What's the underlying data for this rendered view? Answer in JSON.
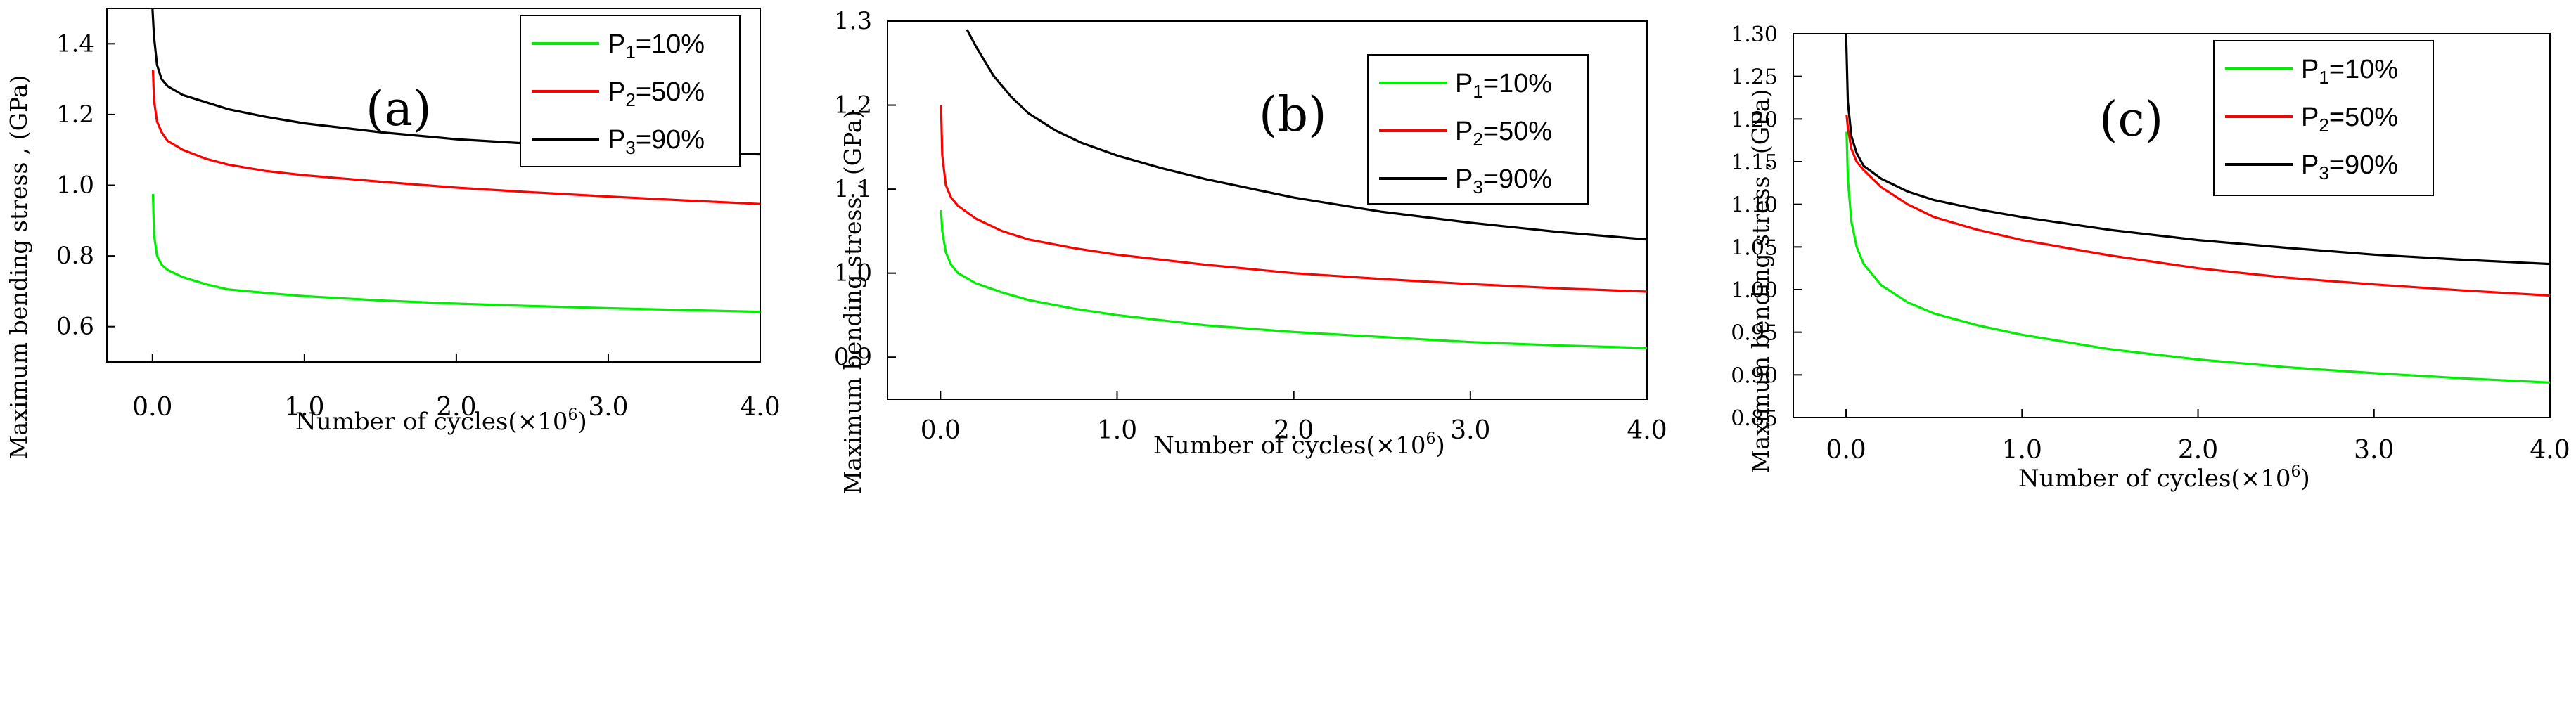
{
  "figure": {
    "xlabel": "Number of cycles(×10",
    "xlabel_sup": "6",
    "xlabel_tail": ")",
    "ylabel": "Maximum bending stress , (GPa)"
  },
  "colors": {
    "p1": "#00ee00",
    "p2": "#ff0000",
    "p3": "#000000",
    "axis": "#000000"
  },
  "chart_data": [
    {
      "type": "line",
      "panel_label": "(a)",
      "xlabel": "Number of cycles(×10⁶)",
      "ylabel": "Maximum bending stress , (GPa)",
      "xlim": [
        -0.3,
        4.0
      ],
      "ylim": [
        0.5,
        1.5
      ],
      "xticks": [
        0.0,
        1.0,
        2.0,
        3.0,
        4.0
      ],
      "xtick_labels": [
        "0.0",
        "1.0",
        "2.0",
        "3.0",
        "4.0"
      ],
      "yticks": [
        0.6,
        0.8,
        1.0,
        1.2,
        1.4
      ],
      "ytick_labels": [
        "0.6",
        "0.8",
        "1.0",
        "1.2",
        "1.4"
      ],
      "legend": {
        "position": "top-right",
        "entries": [
          {
            "prefix": "P",
            "sub": "1",
            "suffix": "=10%"
          },
          {
            "prefix": "P",
            "sub": "2",
            "suffix": "=50%"
          },
          {
            "prefix": "P",
            "sub": "3",
            "suffix": "=90%"
          }
        ]
      },
      "series": [
        {
          "name": "P1=10%",
          "color": "#00ee00",
          "x": [
            0.003,
            0.01,
            0.03,
            0.06,
            0.1,
            0.2,
            0.35,
            0.5,
            0.75,
            1.0,
            1.5,
            2.0,
            2.5,
            3.0,
            3.5,
            4.0
          ],
          "y": [
            0.975,
            0.86,
            0.8,
            0.775,
            0.76,
            0.74,
            0.72,
            0.705,
            0.695,
            0.686,
            0.674,
            0.665,
            0.658,
            0.652,
            0.647,
            0.642
          ]
        },
        {
          "name": "P2=50%",
          "color": "#ff0000",
          "x": [
            0.003,
            0.01,
            0.03,
            0.06,
            0.1,
            0.2,
            0.35,
            0.5,
            0.75,
            1.0,
            1.5,
            2.0,
            2.5,
            3.0,
            3.5,
            4.0
          ],
          "y": [
            1.325,
            1.24,
            1.18,
            1.15,
            1.125,
            1.1,
            1.075,
            1.058,
            1.04,
            1.028,
            1.01,
            0.993,
            0.98,
            0.968,
            0.957,
            0.947
          ]
        },
        {
          "name": "P3=90%",
          "color": "#000000",
          "x": [
            0.0,
            0.01,
            0.03,
            0.06,
            0.1,
            0.2,
            0.35,
            0.5,
            0.75,
            1.0,
            1.5,
            2.0,
            2.5,
            3.0,
            3.5,
            4.0
          ],
          "y": [
            1.5,
            1.42,
            1.34,
            1.3,
            1.28,
            1.255,
            1.235,
            1.215,
            1.193,
            1.175,
            1.15,
            1.13,
            1.117,
            1.105,
            1.095,
            1.087
          ]
        }
      ]
    },
    {
      "type": "line",
      "panel_label": "(b)",
      "xlabel": "Number of cycles(×10⁶)",
      "ylabel": "Maximum bending stress , (GPa)",
      "xlim": [
        -0.3,
        4.0
      ],
      "ylim": [
        0.85,
        1.3
      ],
      "xticks": [
        0.0,
        1.0,
        2.0,
        3.0,
        4.0
      ],
      "xtick_labels": [
        "0.0",
        "1.0",
        "2.0",
        "3.0",
        "4.0"
      ],
      "yticks": [
        0.9,
        1.0,
        1.1,
        1.2,
        1.3
      ],
      "ytick_labels": [
        "0.9",
        "1.0",
        "1.1",
        "1.2",
        "1.3"
      ],
      "legend": {
        "position": "top-right",
        "entries": [
          {
            "prefix": "P",
            "sub": "1",
            "suffix": "=10%"
          },
          {
            "prefix": "P",
            "sub": "2",
            "suffix": "=50%"
          },
          {
            "prefix": "P",
            "sub": "3",
            "suffix": "=90%"
          }
        ]
      },
      "series": [
        {
          "name": "P1=10%",
          "color": "#00ee00",
          "x": [
            0.003,
            0.01,
            0.03,
            0.06,
            0.1,
            0.2,
            0.35,
            0.5,
            0.75,
            1.0,
            1.5,
            2.0,
            2.5,
            3.0,
            3.5,
            4.0
          ],
          "y": [
            1.075,
            1.05,
            1.025,
            1.01,
            1.0,
            0.988,
            0.977,
            0.968,
            0.958,
            0.95,
            0.938,
            0.93,
            0.924,
            0.918,
            0.914,
            0.911
          ]
        },
        {
          "name": "P2=50%",
          "color": "#ff0000",
          "x": [
            0.003,
            0.01,
            0.03,
            0.06,
            0.1,
            0.2,
            0.35,
            0.5,
            0.75,
            1.0,
            1.5,
            2.0,
            2.5,
            3.0,
            3.5,
            4.0
          ],
          "y": [
            1.2,
            1.14,
            1.105,
            1.09,
            1.08,
            1.065,
            1.05,
            1.04,
            1.03,
            1.022,
            1.01,
            1.0,
            0.993,
            0.987,
            0.982,
            0.978
          ]
        },
        {
          "name": "P3=90%",
          "color": "#000000",
          "x": [
            0.15,
            0.2,
            0.3,
            0.4,
            0.5,
            0.65,
            0.8,
            1.0,
            1.25,
            1.5,
            2.0,
            2.5,
            3.0,
            3.5,
            4.0
          ],
          "y": [
            1.29,
            1.27,
            1.235,
            1.21,
            1.19,
            1.17,
            1.155,
            1.14,
            1.125,
            1.112,
            1.09,
            1.073,
            1.06,
            1.049,
            1.04
          ]
        }
      ]
    },
    {
      "type": "line",
      "panel_label": "(c)",
      "xlabel": "Number of cycles(×10⁶)",
      "ylabel": "Maximum bending stress , (GPa)",
      "xlim": [
        -0.3,
        4.0
      ],
      "ylim": [
        0.85,
        1.3
      ],
      "xticks": [
        0.0,
        1.0,
        2.0,
        3.0,
        4.0
      ],
      "xtick_labels": [
        "0.0",
        "1.0",
        "2.0",
        "3.0",
        "4.0"
      ],
      "yticks": [
        0.85,
        0.9,
        0.95,
        1.0,
        1.05,
        1.1,
        1.15,
        1.2,
        1.25,
        1.3
      ],
      "ytick_labels": [
        "0.85",
        "0.90",
        "0.95",
        "1.00",
        "1.05",
        "1.10",
        "1.15",
        "1.20",
        "1.25",
        "1.30"
      ],
      "legend": {
        "position": "top-right",
        "entries": [
          {
            "prefix": "P",
            "sub": "1",
            "suffix": "=10%"
          },
          {
            "prefix": "P",
            "sub": "2",
            "suffix": "=50%"
          },
          {
            "prefix": "P",
            "sub": "3",
            "suffix": "=90%"
          }
        ]
      },
      "series": [
        {
          "name": "P1=10%",
          "color": "#00ee00",
          "x": [
            0.003,
            0.01,
            0.03,
            0.06,
            0.1,
            0.2,
            0.35,
            0.5,
            0.75,
            1.0,
            1.5,
            2.0,
            2.5,
            3.0,
            3.5,
            4.0
          ],
          "y": [
            1.185,
            1.13,
            1.08,
            1.05,
            1.03,
            1.005,
            0.985,
            0.972,
            0.958,
            0.947,
            0.93,
            0.918,
            0.909,
            0.902,
            0.896,
            0.891
          ]
        },
        {
          "name": "P2=50%",
          "color": "#ff0000",
          "x": [
            0.003,
            0.01,
            0.03,
            0.06,
            0.1,
            0.2,
            0.35,
            0.5,
            0.75,
            1.0,
            1.5,
            2.0,
            2.5,
            3.0,
            3.5,
            4.0
          ],
          "y": [
            1.205,
            1.19,
            1.165,
            1.15,
            1.14,
            1.12,
            1.1,
            1.085,
            1.07,
            1.058,
            1.04,
            1.025,
            1.014,
            1.006,
            0.999,
            0.993
          ]
        },
        {
          "name": "P3=90%",
          "color": "#000000",
          "x": [
            0.0,
            0.01,
            0.03,
            0.06,
            0.1,
            0.2,
            0.35,
            0.5,
            0.75,
            1.0,
            1.5,
            2.0,
            2.5,
            3.0,
            3.5,
            4.0
          ],
          "y": [
            1.3,
            1.22,
            1.18,
            1.16,
            1.145,
            1.13,
            1.115,
            1.105,
            1.094,
            1.085,
            1.07,
            1.058,
            1.049,
            1.041,
            1.035,
            1.03
          ]
        }
      ]
    }
  ]
}
